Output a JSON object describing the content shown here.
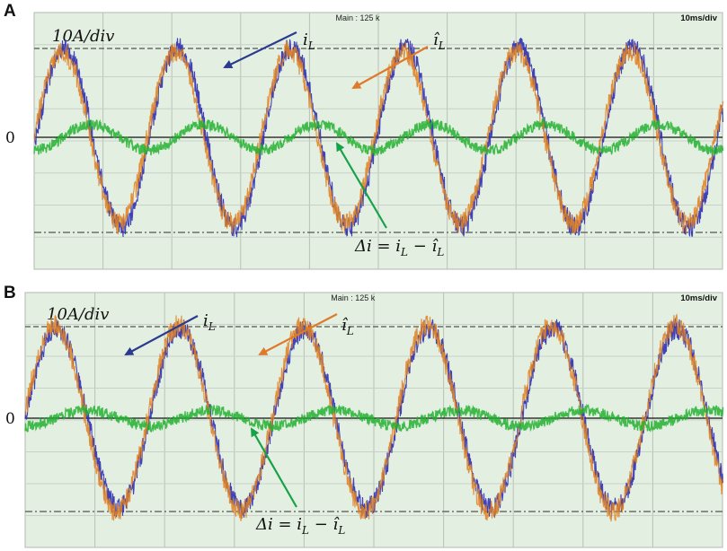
{
  "chart_data": [
    {
      "panel": "A",
      "type": "line",
      "header_center": "Main : 125 k",
      "header_right": "10ms/div",
      "scale_label": "10A/div",
      "zero_label": "0",
      "time_per_div_ms": 10,
      "amplitude_per_div_A": 10,
      "grid": true,
      "signal_period_ms": 16.5,
      "series": [
        {
          "name": "iL",
          "label": "i_L",
          "color": "#2f2fb0",
          "amplitude_A": 25,
          "phase_deg": -5
        },
        {
          "name": "iL_hat",
          "label": "î_L",
          "color": "#e08020",
          "amplitude_A": 24,
          "phase_deg": 2
        },
        {
          "name": "delta_i",
          "label": "Δi = i_L − î_L",
          "color": "#22b030",
          "amplitude_A": 3,
          "phase_deg": -90
        }
      ]
    },
    {
      "panel": "B",
      "type": "line",
      "header_center": "Main : 125 k",
      "header_right": "10ms/div",
      "scale_label": "10A/div",
      "zero_label": "0",
      "time_per_div_ms": 10,
      "amplitude_per_div_A": 10,
      "grid": true,
      "signal_period_ms": 17.8,
      "series": [
        {
          "name": "iL",
          "label": "i_L",
          "color": "#2f2fb0",
          "amplitude_A": 27,
          "phase_deg": 0
        },
        {
          "name": "iL_hat",
          "label": "î_L",
          "color": "#e08020",
          "amplitude_A": 28,
          "phase_deg": 5
        },
        {
          "name": "delta_i",
          "label": "Δi = i_L − î_L",
          "color": "#22b030",
          "amplitude_A": 2,
          "phase_deg": -90
        }
      ]
    }
  ],
  "labels": {
    "panelA": "A",
    "panelB": "B",
    "iL": "i",
    "iL_sub": "L",
    "iLhat": "î",
    "iLhat_sub": "L",
    "delta_prefix": "Δi = i",
    "delta_mid": " − î",
    "sub": "L"
  }
}
